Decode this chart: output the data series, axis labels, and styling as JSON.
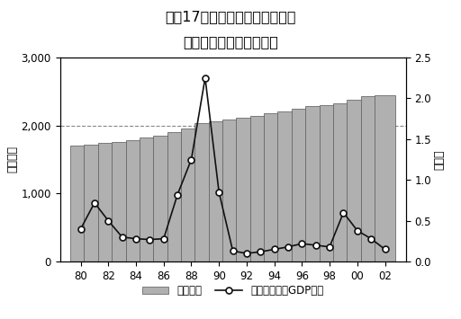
{
  "title_line1": "図膐17　上場社数と株式による",
  "title_line2": "資金調達額（ＧＤＰ比）",
  "ylabel_left": "（社数）",
  "ylabel_right": "（％）",
  "years": [
    80,
    81,
    82,
    83,
    84,
    85,
    86,
    87,
    88,
    89,
    90,
    91,
    92,
    93,
    94,
    95,
    96,
    97,
    98,
    99,
    100,
    101,
    102
  ],
  "bar_values": [
    1700,
    1720,
    1750,
    1760,
    1790,
    1820,
    1850,
    1900,
    1960,
    2030,
    2060,
    2090,
    2120,
    2145,
    2175,
    2210,
    2250,
    2280,
    2300,
    2325,
    2375,
    2430,
    2450
  ],
  "line_values": [
    0.4,
    0.72,
    0.5,
    0.3,
    0.28,
    0.27,
    0.28,
    0.82,
    1.25,
    2.25,
    0.85,
    0.13,
    0.1,
    0.12,
    0.15,
    0.18,
    0.22,
    0.2,
    0.18,
    0.6,
    0.38,
    0.28,
    0.15
  ],
  "bar_color": "#b0b0b0",
  "bar_edgecolor": "#555555",
  "line_color": "#111111",
  "marker_facecolor": "#ffffff",
  "marker_edgecolor": "#111111",
  "dashed_line_y": 2000,
  "ylim_left": [
    0,
    3000
  ],
  "ylim_right": [
    0,
    2.5
  ],
  "yticks_left": [
    0,
    1000,
    2000,
    3000
  ],
  "yticks_right": [
    0,
    0.5,
    1.0,
    1.5,
    2.0,
    2.5
  ],
  "xtick_labels": [
    "80",
    "82",
    "84",
    "86",
    "88",
    "90",
    "92",
    "94",
    "96",
    "98",
    "00",
    "02"
  ],
  "xtick_positions": [
    80,
    82,
    84,
    86,
    88,
    90,
    92,
    94,
    96,
    98,
    100,
    102
  ],
  "xlim": [
    78.5,
    103.5
  ],
  "legend_bar_label": "上場社数",
  "legend_line_label": "資金調達額（GDP比）",
  "background_color": "#ffffff",
  "title_fontsize": 11.5,
  "axis_label_fontsize": 9,
  "tick_fontsize": 8.5,
  "bar_width": 1.5
}
